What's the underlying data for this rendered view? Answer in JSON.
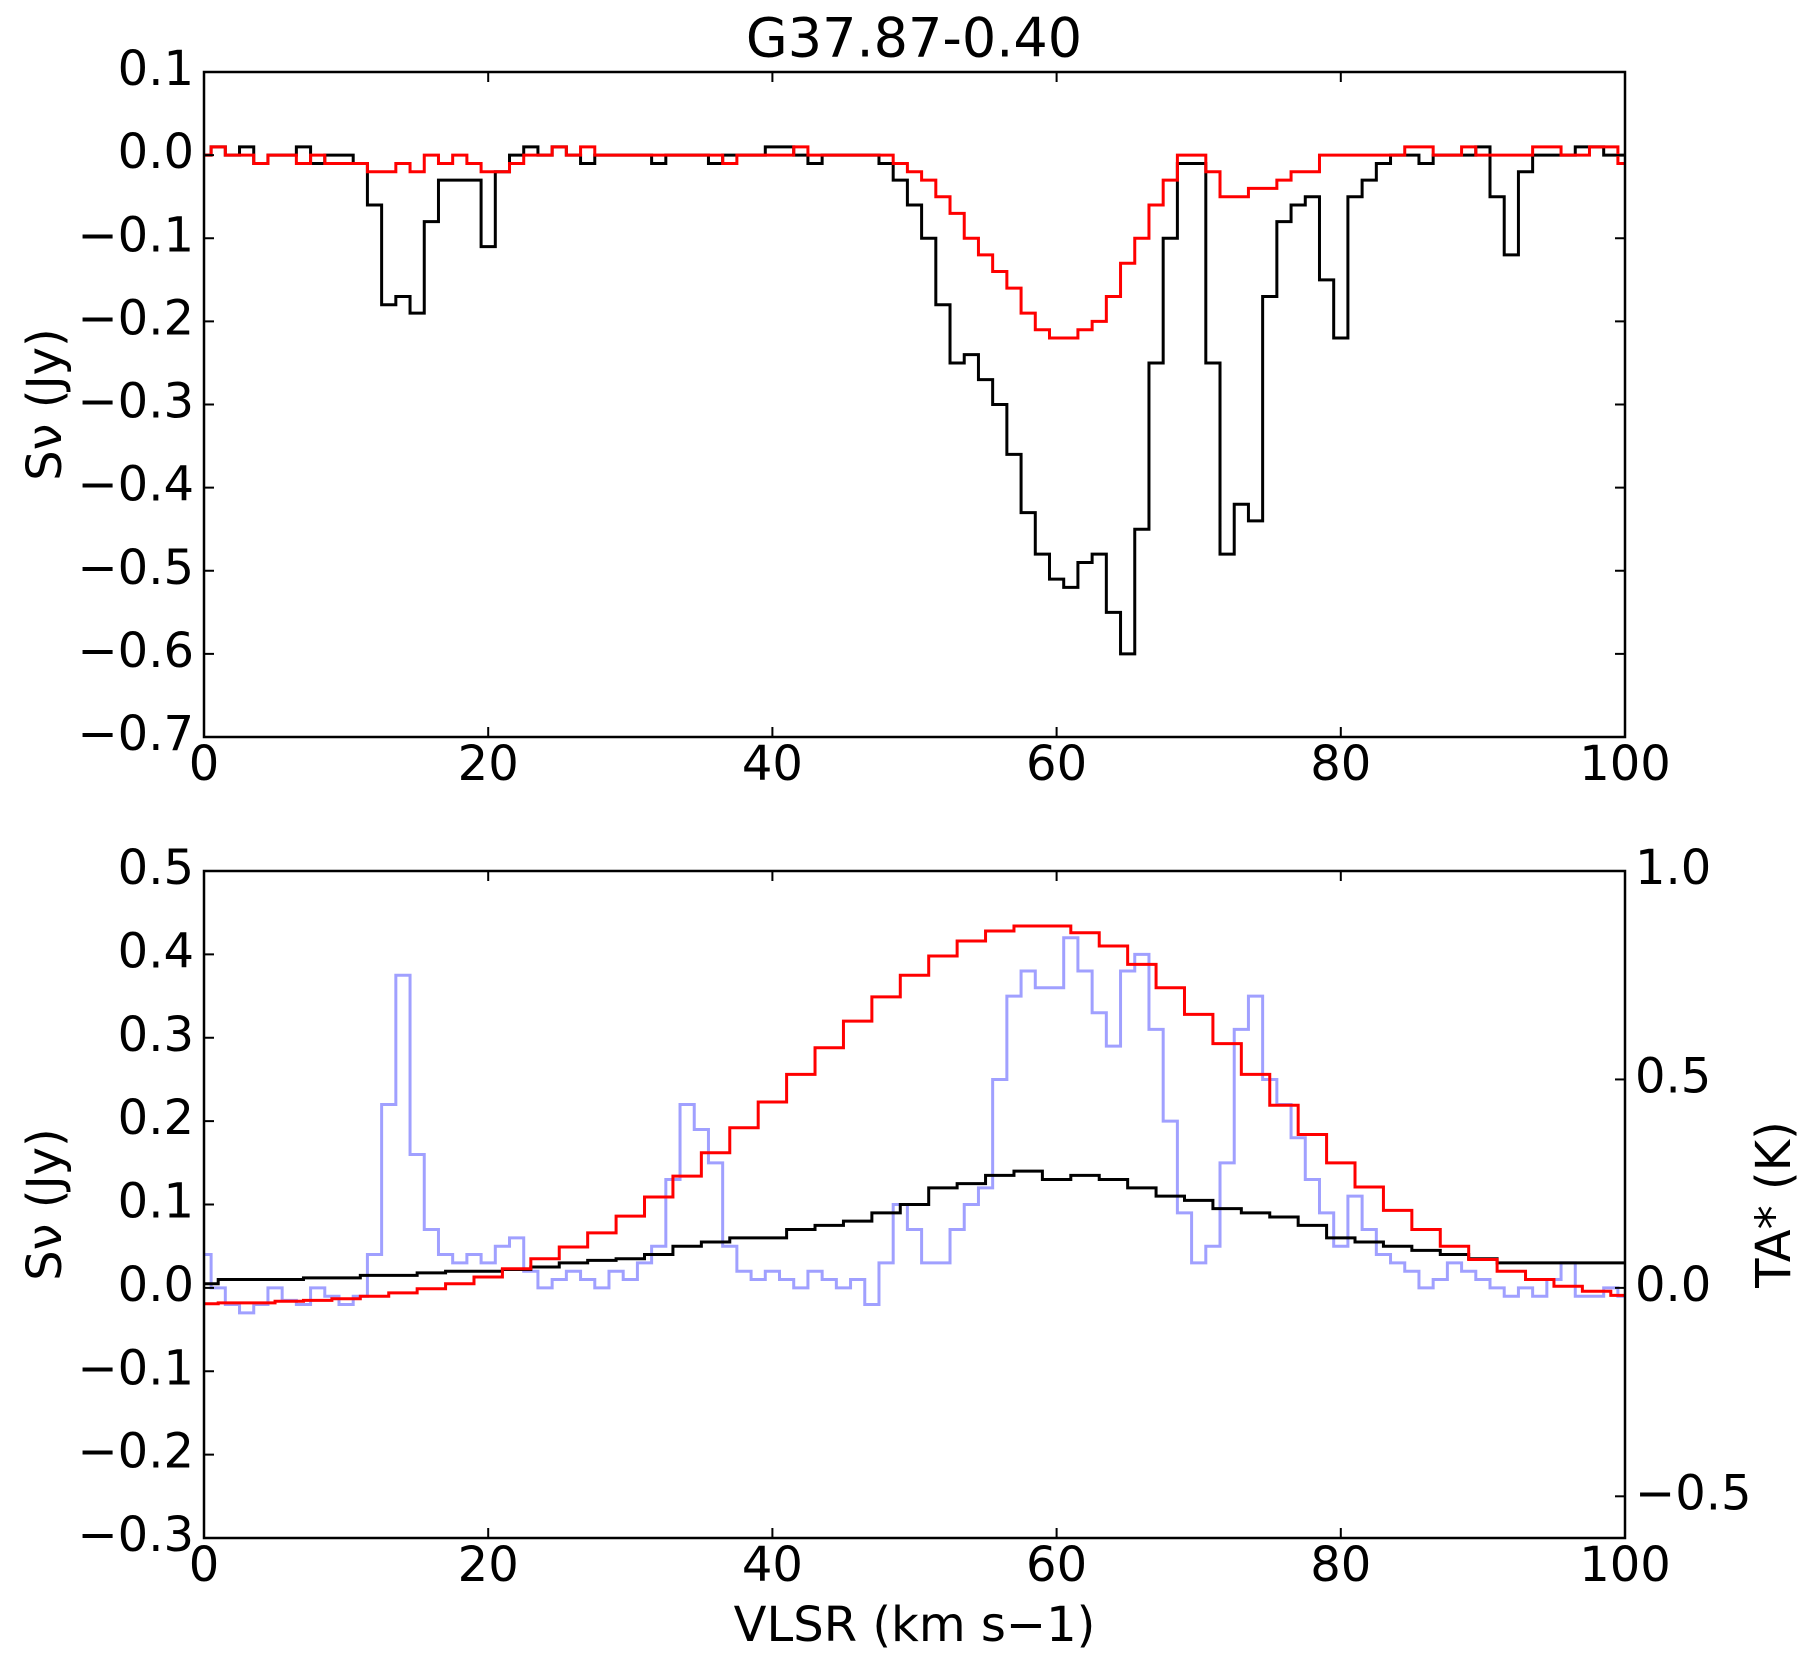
{
  "chart_data": [
    {
      "type": "line",
      "title": "G37.87-0.40",
      "ylabel": "Sν (Jy)",
      "drawstyle": "steps-mid",
      "x": [
        0,
        1,
        2,
        3,
        4,
        5,
        6,
        7,
        8,
        9,
        10,
        11,
        12,
        13,
        14,
        15,
        16,
        17,
        18,
        19,
        20,
        21,
        22,
        23,
        24,
        25,
        26,
        27,
        28,
        29,
        30,
        31,
        32,
        33,
        34,
        35,
        36,
        37,
        38,
        39,
        40,
        41,
        42,
        43,
        44,
        45,
        46,
        47,
        48,
        49,
        50,
        51,
        52,
        53,
        54,
        55,
        56,
        57,
        58,
        59,
        60,
        61,
        62,
        63,
        64,
        65,
        66,
        67,
        68,
        69,
        70,
        71,
        72,
        73,
        74,
        75,
        76,
        77,
        78,
        79,
        80,
        81,
        82,
        83,
        84,
        85,
        86,
        87,
        88,
        89,
        90,
        91,
        92,
        93,
        94,
        95,
        96,
        97,
        98,
        99,
        100
      ],
      "series": [
        {
          "color": "#000000",
          "values": [
            0.0,
            0.01,
            0.0,
            0.01,
            -0.01,
            0.0,
            0.0,
            0.01,
            -0.01,
            0.0,
            0.0,
            -0.01,
            -0.06,
            -0.18,
            -0.17,
            -0.19,
            -0.08,
            -0.03,
            -0.03,
            -0.03,
            -0.11,
            -0.02,
            0.0,
            0.01,
            0.0,
            0.01,
            0.0,
            -0.01,
            0.0,
            0.0,
            0.0,
            0.0,
            -0.01,
            0.0,
            0.0,
            0.0,
            -0.01,
            0.0,
            0.0,
            0.0,
            0.01,
            0.01,
            0.0,
            -0.01,
            0.0,
            0.0,
            0.0,
            0.0,
            -0.01,
            -0.03,
            -0.06,
            -0.1,
            -0.18,
            -0.25,
            -0.24,
            -0.27,
            -0.3,
            -0.36,
            -0.43,
            -0.48,
            -0.51,
            -0.52,
            -0.49,
            -0.48,
            -0.55,
            -0.6,
            -0.45,
            -0.25,
            -0.1,
            -0.01,
            -0.01,
            -0.25,
            -0.48,
            -0.42,
            -0.44,
            -0.17,
            -0.08,
            -0.06,
            -0.05,
            -0.15,
            -0.22,
            -0.05,
            -0.03,
            -0.01,
            0.0,
            0.0,
            -0.01,
            0.0,
            0.0,
            0.0,
            0.01,
            -0.05,
            -0.12,
            -0.02,
            0.0,
            0.0,
            0.0,
            0.01,
            0.01,
            0.0,
            0.0
          ]
        },
        {
          "color": "#ff0000",
          "values": [
            0.0,
            0.01,
            0.0,
            0.0,
            -0.01,
            0.0,
            0.0,
            -0.01,
            0.0,
            -0.01,
            -0.01,
            -0.01,
            -0.02,
            -0.02,
            -0.01,
            -0.02,
            0.0,
            -0.01,
            0.0,
            -0.01,
            -0.02,
            -0.02,
            -0.01,
            0.0,
            0.0,
            0.01,
            0.0,
            0.01,
            0.0,
            0.0,
            0.0,
            0.0,
            0.0,
            0.0,
            0.0,
            0.0,
            0.0,
            -0.01,
            0.0,
            0.0,
            0.0,
            0.0,
            0.01,
            0.0,
            0.0,
            0.0,
            0.0,
            0.0,
            0.0,
            -0.01,
            -0.02,
            -0.03,
            -0.05,
            -0.07,
            -0.1,
            -0.12,
            -0.14,
            -0.16,
            -0.19,
            -0.21,
            -0.22,
            -0.22,
            -0.21,
            -0.2,
            -0.17,
            -0.13,
            -0.1,
            -0.06,
            -0.03,
            0.0,
            0.0,
            -0.02,
            -0.05,
            -0.05,
            -0.04,
            -0.04,
            -0.03,
            -0.02,
            -0.02,
            0.0,
            0.0,
            0.0,
            0.0,
            0.0,
            0.0,
            0.01,
            0.01,
            0.0,
            0.0,
            0.01,
            0.0,
            0.0,
            0.0,
            0.0,
            0.01,
            0.01,
            0.0,
            0.0,
            0.01,
            0.01,
            -0.01
          ]
        }
      ],
      "xlim": [
        0,
        100
      ],
      "xticks": [
        0,
        20,
        40,
        60,
        80,
        100
      ],
      "ylim": [
        -0.7,
        0.1
      ],
      "yticks": [
        {
          "value": -0.7,
          "label": "−0.7"
        },
        {
          "value": -0.6,
          "label": "−0.6"
        },
        {
          "value": -0.5,
          "label": "−0.5"
        },
        {
          "value": -0.4,
          "label": "−0.4"
        },
        {
          "value": -0.3,
          "label": "−0.3"
        },
        {
          "value": -0.2,
          "label": "−0.2"
        },
        {
          "value": -0.1,
          "label": "−0.1"
        },
        {
          "value": 0,
          "label": "0.0"
        },
        0.1
      ]
    },
    {
      "type": "line",
      "ylabel": "Sν (Jy)",
      "xlabel": "VLSR (km s−1)",
      "y2label": "TA* (K)",
      "drawstyle": "steps-mid",
      "series": [
        {
          "color": "#8080ff",
          "axis": "y2",
          "x": [
            0,
            1,
            2,
            3,
            4,
            5,
            6,
            7,
            8,
            9,
            10,
            11,
            12,
            13,
            14,
            15,
            16,
            17,
            18,
            19,
            20,
            21,
            22,
            23,
            24,
            25,
            26,
            27,
            28,
            29,
            30,
            31,
            32,
            33,
            34,
            35,
            36,
            37,
            38,
            39,
            40,
            41,
            42,
            43,
            44,
            45,
            46,
            47,
            48,
            49,
            50,
            51,
            52,
            53,
            54,
            55,
            56,
            57,
            58,
            59,
            60,
            61,
            62,
            63,
            64,
            65,
            66,
            67,
            68,
            69,
            70,
            71,
            72,
            73,
            74,
            75,
            76,
            77,
            78,
            79,
            80,
            81,
            82,
            83,
            84,
            85,
            86,
            87,
            88,
            89,
            90,
            91,
            92,
            93,
            94,
            95,
            96,
            97,
            98,
            99,
            100
          ],
          "values": [
            0.08,
            0.0,
            -0.04,
            -0.06,
            -0.04,
            0.0,
            -0.03,
            -0.04,
            0.0,
            -0.02,
            -0.04,
            -0.02,
            0.08,
            0.44,
            0.75,
            0.32,
            0.14,
            0.08,
            0.06,
            0.08,
            0.06,
            0.1,
            0.12,
            0.04,
            0.0,
            0.02,
            0.04,
            0.02,
            0.0,
            0.04,
            0.02,
            0.06,
            0.1,
            0.26,
            0.44,
            0.38,
            0.3,
            0.1,
            0.04,
            0.02,
            0.04,
            0.02,
            0.0,
            0.04,
            0.02,
            0.0,
            0.02,
            -0.04,
            0.06,
            0.2,
            0.14,
            0.06,
            0.06,
            0.14,
            0.2,
            0.24,
            0.5,
            0.7,
            0.76,
            0.72,
            0.72,
            0.84,
            0.76,
            0.66,
            0.58,
            0.76,
            0.8,
            0.62,
            0.4,
            0.18,
            0.06,
            0.1,
            0.3,
            0.62,
            0.7,
            0.5,
            0.44,
            0.36,
            0.26,
            0.18,
            0.1,
            0.22,
            0.14,
            0.08,
            0.06,
            0.04,
            0.0,
            0.02,
            0.06,
            0.04,
            0.02,
            0.0,
            -0.02,
            0.0,
            -0.02,
            0.02,
            0.06,
            -0.02,
            -0.02,
            0.0,
            -0.02
          ]
        },
        {
          "color": "#000000",
          "x": [
            0,
            2,
            4,
            6,
            8,
            10,
            12,
            14,
            16,
            18,
            20,
            22,
            24,
            26,
            28,
            30,
            32,
            34,
            36,
            38,
            40,
            42,
            44,
            46,
            48,
            50,
            52,
            54,
            56,
            58,
            60,
            62,
            64,
            66,
            68,
            70,
            72,
            74,
            76,
            78,
            80,
            82,
            84,
            86,
            88,
            90,
            92,
            94,
            96,
            98,
            100
          ],
          "values": [
            0.005,
            0.01,
            0.01,
            0.01,
            0.012,
            0.012,
            0.015,
            0.015,
            0.018,
            0.02,
            0.02,
            0.022,
            0.025,
            0.03,
            0.033,
            0.035,
            0.04,
            0.05,
            0.055,
            0.06,
            0.06,
            0.07,
            0.075,
            0.08,
            0.09,
            0.1,
            0.12,
            0.125,
            0.135,
            0.14,
            0.13,
            0.135,
            0.13,
            0.12,
            0.11,
            0.105,
            0.095,
            0.09,
            0.085,
            0.075,
            0.06,
            0.055,
            0.05,
            0.045,
            0.04,
            0.035,
            0.03,
            0.03,
            0.03,
            0.03,
            0.03
          ]
        },
        {
          "color": "#ff0000",
          "x": [
            0,
            2,
            4,
            6,
            8,
            10,
            12,
            14,
            16,
            18,
            20,
            22,
            24,
            26,
            28,
            30,
            32,
            34,
            36,
            38,
            40,
            42,
            44,
            46,
            48,
            50,
            52,
            54,
            56,
            58,
            60,
            62,
            64,
            66,
            68,
            70,
            72,
            74,
            76,
            78,
            80,
            82,
            84,
            86,
            88,
            90,
            92,
            94,
            96,
            98,
            100
          ],
          "values": [
            -0.019,
            -0.018,
            -0.018,
            -0.016,
            -0.015,
            -0.013,
            -0.01,
            -0.006,
            -0.001,
            0.005,
            0.013,
            0.023,
            0.035,
            0.049,
            0.066,
            0.086,
            0.109,
            0.134,
            0.162,
            0.192,
            0.223,
            0.256,
            0.288,
            0.32,
            0.349,
            0.375,
            0.398,
            0.416,
            0.428,
            0.434,
            0.434,
            0.426,
            0.41,
            0.388,
            0.36,
            0.328,
            0.293,
            0.256,
            0.219,
            0.184,
            0.15,
            0.121,
            0.093,
            0.07,
            0.05,
            0.034,
            0.02,
            0.01,
            0.002,
            -0.004,
            -0.009
          ]
        }
      ],
      "xlim": [
        0,
        100
      ],
      "xticks": [
        0,
        20,
        40,
        60,
        80,
        100
      ],
      "ylim": [
        -0.3,
        0.5
      ],
      "yticks": [
        {
          "value": -0.3,
          "label": "−0.3"
        },
        {
          "value": -0.2,
          "label": "−0.2"
        },
        {
          "value": -0.1,
          "label": "−0.1"
        },
        {
          "value": 0,
          "label": "0.0"
        },
        0.1,
        0.2,
        0.3,
        0.4,
        0.5
      ],
      "y2lim": [
        -0.6,
        1.0
      ],
      "y2ticks": [
        {
          "value": -0.5,
          "label": "−0.5"
        },
        {
          "value": 0,
          "label": "0.0"
        },
        0.5,
        {
          "value": 1.0,
          "label": "1.0"
        }
      ]
    }
  ]
}
